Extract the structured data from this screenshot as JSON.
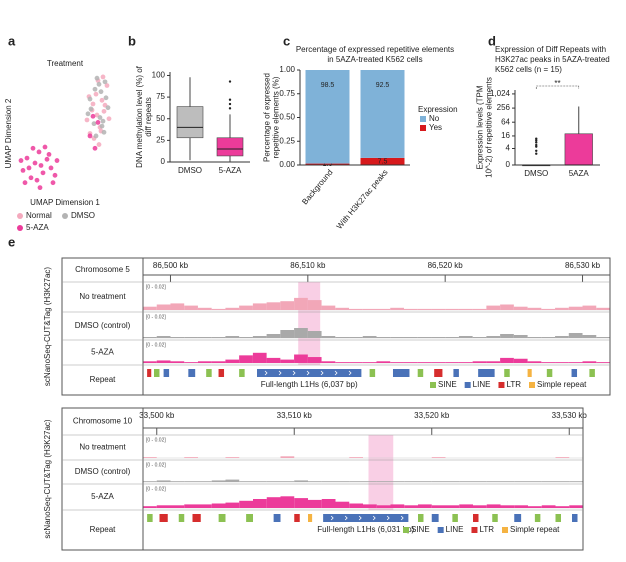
{
  "chart_data": [
    {
      "type": "scatter",
      "panel": "a",
      "title": "Treatment",
      "xlabel": "UMAP Dimension 1",
      "ylabel": "UMAP Dimension 2",
      "xlim": [
        0,
        10
      ],
      "ylim": [
        0,
        10
      ],
      "series": [
        {
          "name": "Normal",
          "color": "#f4a9bd",
          "x": [
            7.2,
            7.8,
            8.1,
            8.5,
            8.9,
            9.2,
            7.5,
            8.3,
            8.7,
            9.4,
            7.9,
            8.2,
            8.6,
            7.4,
            9.0,
            8.4,
            7.7,
            8.8
          ],
          "values": [
            6.1,
            7.4,
            8.2,
            5.5,
            6.8,
            8.9,
            5.0,
            9.3,
            7.7,
            6.2,
            4.6,
            6.5,
            5.2,
            8.0,
            7.3,
            4.1,
            6.9,
            9.6
          ]
        },
        {
          "name": "DMSO",
          "color": "#b3b3b3",
          "x": [
            7.6,
            8.0,
            8.4,
            8.8,
            9.1,
            7.3,
            8.6,
            9.3,
            7.9,
            8.2,
            8.9,
            7.5,
            8.5,
            9.0,
            8.1,
            8.7
          ],
          "values": [
            7.0,
            8.6,
            9.0,
            6.0,
            7.9,
            6.6,
            8.4,
            7.1,
            5.8,
            9.5,
            5.1,
            7.8,
            6.3,
            9.2,
            4.8,
            5.6
          ]
        },
        {
          "name": "5-AZA",
          "color": "#ec3b9a",
          "x": [
            0.8,
            1.2,
            1.6,
            2.0,
            2.4,
            2.8,
            3.2,
            3.6,
            4.0,
            1.0,
            1.8,
            2.6,
            3.4,
            4.2,
            1.4,
            2.2,
            3.0,
            3.8,
            0.6,
            2.5,
            7.8,
            8.3,
            8.0,
            7.5
          ],
          "values": [
            2.0,
            3.0,
            1.4,
            2.6,
            3.5,
            1.8,
            2.9,
            2.2,
            1.6,
            1.0,
            3.8,
            2.4,
            3.3,
            2.8,
            2.2,
            1.2,
            3.9,
            1.0,
            2.8,
            0.6,
            6.4,
            5.9,
            3.8,
            4.8
          ]
        }
      ]
    },
    {
      "type": "box",
      "panel": "b",
      "ylabel": "DNA methylation level (%) of diff repeats",
      "categories": [
        "DMSO",
        "5-AZA"
      ],
      "colors": [
        "#bdbdbd",
        "#ec3b9a"
      ],
      "ylim": [
        0,
        104
      ],
      "yticks": [
        0,
        25,
        50,
        75,
        100
      ],
      "boxes": [
        {
          "min": 2,
          "q1": 28,
          "median": 40,
          "q3": 64,
          "max": 98,
          "outliers": []
        },
        {
          "min": 0,
          "q1": 7,
          "median": 15,
          "q3": 28,
          "max": 55,
          "outliers": [
            62,
            67,
            72,
            93
          ]
        }
      ]
    },
    {
      "type": "stacked-bar",
      "panel": "c",
      "title": "Percentage of expressed repetitive elements in 5AZA-treated K562 cells",
      "ylabel": "Percentage of expressed repetitive elements (%)",
      "legend_title": "Expression",
      "categories": [
        "Background",
        "With H3K27ac peaks"
      ],
      "ylim": [
        0,
        1
      ],
      "yticks": [
        {
          "value": 0,
          "label": "0.00"
        },
        {
          "value": 0.25,
          "label": "0.25"
        },
        {
          "value": 0.5,
          "label": "0.50"
        },
        {
          "value": 0.75,
          "label": "0.75"
        },
        {
          "value": 1,
          "label": "1.00"
        }
      ],
      "series": [
        {
          "name": "No",
          "color": "#7fb2d8",
          "values": [
            0.985,
            0.925
          ],
          "value_labels": [
            "98.5",
            "92.5"
          ]
        },
        {
          "name": "Yes",
          "color": "#d7191c",
          "values": [
            0.015,
            0.075
          ],
          "value_labels": [
            "1.5",
            "7.5"
          ]
        }
      ]
    },
    {
      "type": "box",
      "panel": "d",
      "title": "Expression of Diff Repeats with H3K27ac peaks in 5AZA-treated K562 cells (n = 15)",
      "ylabel": "Expression levels (TPM 10^-2) of repetitive elements",
      "annotation": "**",
      "categories": [
        "DMSO",
        "5AZA"
      ],
      "colors": [
        "#bdbdbd",
        "#ec3b9a"
      ],
      "yscale": "pseudo-log2",
      "ylim": [
        0,
        1500
      ],
      "yticks": [
        0,
        4,
        16,
        64,
        256,
        {
          "value": 1024,
          "label": "1,024"
        }
      ],
      "boxes": [
        {
          "min": 0,
          "q1": 0,
          "median": 0,
          "q3": 0,
          "max": 0,
          "outliers": [
            2,
            3,
            5,
            6,
            8,
            10,
            12
          ]
        },
        {
          "min": 0,
          "q1": 0,
          "median": 0,
          "q3": 20,
          "max": 300,
          "outliers": []
        }
      ]
    },
    {
      "type": "genome-track",
      "panel": "e",
      "ylabel": "scNanoSeq-CUT&Tag (H3K27ac)",
      "chromosome": "Chromosome 5",
      "xlim": [
        86498,
        86532
      ],
      "xticks": [
        {
          "value": 86500,
          "label": "86,500 kb"
        },
        {
          "value": 86510,
          "label": "86,510 kb"
        },
        {
          "value": 86520,
          "label": "86,520 kb"
        },
        {
          "value": 86530,
          "label": "86,530 kb"
        }
      ],
      "highlight": [
        86509.3,
        86510.9
      ],
      "ylim": [
        0,
        0.02
      ],
      "range_label": "[0 - 0.02]",
      "bins": [
        86498,
        86499,
        86500,
        86501,
        86502,
        86503,
        86504,
        86505,
        86506,
        86507,
        86508,
        86509,
        86510,
        86511,
        86512,
        86513,
        86514,
        86515,
        86516,
        86517,
        86518,
        86519,
        86520,
        86521,
        86522,
        86523,
        86524,
        86525,
        86526,
        86527,
        86528,
        86529,
        86530,
        86531,
        86532
      ],
      "tracks": [
        {
          "name": "No treatment",
          "color": "#f2a7b8",
          "values": [
            0.003,
            0.005,
            0.006,
            0.004,
            0.002,
            0.001,
            0.002,
            0.004,
            0.006,
            0.007,
            0.008,
            0.011,
            0.009,
            0.004,
            0.002,
            0.001,
            0.001,
            0.001,
            0.002,
            0.001,
            0.001,
            0.001,
            0.001,
            0.001,
            0.001,
            0.004,
            0.005,
            0.003,
            0.002,
            0.001,
            0.002,
            0.003,
            0.004,
            0.002
          ]
        },
        {
          "name": "DMSO (control)",
          "color": "#a9a9a9",
          "values": [
            0.001,
            0.002,
            0.001,
            0.001,
            0.001,
            0.001,
            0.002,
            0.001,
            0.002,
            0.004,
            0.008,
            0.01,
            0.007,
            0.002,
            0.001,
            0.001,
            0.002,
            0.001,
            0.001,
            0.001,
            0.001,
            0.001,
            0.001,
            0.002,
            0.001,
            0.002,
            0.004,
            0.003,
            0.001,
            0.001,
            0.002,
            0.005,
            0.003,
            0.001
          ]
        },
        {
          "name": "5-AZA",
          "color": "#ec3b9a",
          "values": [
            0.002,
            0.003,
            0.002,
            0.001,
            0.002,
            0.002,
            0.004,
            0.009,
            0.012,
            0.006,
            0.004,
            0.01,
            0.007,
            0.002,
            0.001,
            0.001,
            0.001,
            0.002,
            0.001,
            0.001,
            0.001,
            0.001,
            0.001,
            0.001,
            0.002,
            0.002,
            0.006,
            0.005,
            0.002,
            0.001,
            0.001,
            0.001,
            0.002,
            0.001
          ]
        }
      ],
      "repeat_track": "Repeat",
      "annotation": "Full-length L1Hs (6,037 bp)",
      "repeats": [
        {
          "start": 86498.3,
          "end": 86498.6,
          "class": "LTR"
        },
        {
          "start": 86498.8,
          "end": 86499.2,
          "class": "SINE"
        },
        {
          "start": 86499.5,
          "end": 86499.9,
          "class": "LINE"
        },
        {
          "start": 86501.3,
          "end": 86501.8,
          "class": "LINE"
        },
        {
          "start": 86502.6,
          "end": 86503.0,
          "class": "SINE"
        },
        {
          "start": 86503.5,
          "end": 86503.9,
          "class": "LTR"
        },
        {
          "start": 86505.0,
          "end": 86505.4,
          "class": "SINE"
        },
        {
          "start": 86506.3,
          "end": 86513.9,
          "class": "LINE"
        },
        {
          "start": 86514.5,
          "end": 86514.9,
          "class": "SINE"
        },
        {
          "start": 86516.2,
          "end": 86517.4,
          "class": "LINE"
        },
        {
          "start": 86518.0,
          "end": 86518.4,
          "class": "SINE"
        },
        {
          "start": 86519.2,
          "end": 86519.8,
          "class": "LTR"
        },
        {
          "start": 86520.6,
          "end": 86521.0,
          "class": "LINE"
        },
        {
          "start": 86522.4,
          "end": 86523.6,
          "class": "LINE"
        },
        {
          "start": 86524.3,
          "end": 86524.7,
          "class": "SINE"
        },
        {
          "start": 86526.0,
          "end": 86526.3,
          "class": "Simple repeat"
        },
        {
          "start": 86527.4,
          "end": 86527.8,
          "class": "SINE"
        },
        {
          "start": 86529.2,
          "end": 86529.6,
          "class": "LINE"
        },
        {
          "start": 86530.5,
          "end": 86530.9,
          "class": "SINE"
        }
      ],
      "legend": [
        {
          "name": "SINE",
          "color": "#8cc152"
        },
        {
          "name": "LINE",
          "color": "#4a72b8"
        },
        {
          "name": "LTR",
          "color": "#d62d2d"
        },
        {
          "name": "Simple repeat",
          "color": "#f5b342"
        }
      ]
    },
    {
      "type": "genome-track",
      "ylabel": "scNanoSeq-CUT&Tag (H3K27ac)",
      "chromosome": "Chromosome 10",
      "xlim": [
        33499,
        33531
      ],
      "xticks": [
        {
          "value": 33500,
          "label": "33,500 kb"
        },
        {
          "value": 33510,
          "label": "33,510 kb"
        },
        {
          "value": 33520,
          "label": "33,520 kb"
        },
        {
          "value": 33530,
          "label": "33,530 kb"
        }
      ],
      "highlight": [
        33515.4,
        33517.2
      ],
      "ylim": [
        0,
        0.02
      ],
      "range_label": "[0 - 0.02]",
      "bins": [
        33499,
        33500,
        33501,
        33502,
        33503,
        33504,
        33505,
        33506,
        33507,
        33508,
        33509,
        33510,
        33511,
        33512,
        33513,
        33514,
        33515,
        33516,
        33517,
        33518,
        33519,
        33520,
        33521,
        33522,
        33523,
        33524,
        33525,
        33526,
        33527,
        33528,
        33529,
        33530,
        33531
      ],
      "tracks": [
        {
          "name": "No treatment",
          "color": "#f2a7b8",
          "values": [
            0.001,
            0,
            0,
            0.001,
            0,
            0,
            0.001,
            0,
            0,
            0,
            0.002,
            0,
            0,
            0,
            0,
            0.001,
            0,
            0,
            0,
            0,
            0,
            0.001,
            0,
            0,
            0,
            0,
            0,
            0,
            0,
            0,
            0.001,
            0
          ]
        },
        {
          "name": "DMSO (control)",
          "color": "#a9a9a9",
          "values": [
            0.001,
            0.002,
            0.001,
            0.001,
            0.001,
            0.002,
            0.003,
            0.001,
            0.001,
            0.001,
            0.001,
            0.002,
            0.001,
            0.001,
            0.001,
            0.001,
            0.001,
            0.001,
            0.001,
            0.001,
            0.001,
            0.001,
            0.001,
            0.001,
            0.001,
            0.001,
            0.001,
            0.001,
            0.001,
            0.001,
            0.001,
            0.001
          ]
        },
        {
          "name": "5-AZA",
          "color": "#ec3b9a",
          "values": [
            0.002,
            0.003,
            0.003,
            0.004,
            0.004,
            0.005,
            0.006,
            0.008,
            0.01,
            0.012,
            0.013,
            0.011,
            0.009,
            0.01,
            0.007,
            0.005,
            0.004,
            0.003,
            0.004,
            0.003,
            0.004,
            0.003,
            0.003,
            0.004,
            0.003,
            0.004,
            0.003,
            0.003,
            0.002,
            0.003,
            0.002,
            0.003
          ]
        }
      ],
      "repeat_track": "Repeat",
      "annotation": "Full-length L1Hs (6,031 bp)",
      "repeats": [
        {
          "start": 33499.3,
          "end": 33499.7,
          "class": "SINE"
        },
        {
          "start": 33500.2,
          "end": 33500.8,
          "class": "LTR"
        },
        {
          "start": 33501.6,
          "end": 33502.0,
          "class": "SINE"
        },
        {
          "start": 33502.6,
          "end": 33503.2,
          "class": "LTR"
        },
        {
          "start": 33504.5,
          "end": 33505.0,
          "class": "SINE"
        },
        {
          "start": 33506.5,
          "end": 33507.0,
          "class": "SINE"
        },
        {
          "start": 33508.5,
          "end": 33509.0,
          "class": "LINE"
        },
        {
          "start": 33510.0,
          "end": 33510.4,
          "class": "LTR"
        },
        {
          "start": 33511.0,
          "end": 33511.3,
          "class": "Simple repeat"
        },
        {
          "start": 33512.1,
          "end": 33518.3,
          "class": "LINE"
        },
        {
          "start": 33519.0,
          "end": 33519.4,
          "class": "SINE"
        },
        {
          "start": 33520.0,
          "end": 33520.5,
          "class": "LINE"
        },
        {
          "start": 33521.5,
          "end": 33521.9,
          "class": "SINE"
        },
        {
          "start": 33523.0,
          "end": 33523.4,
          "class": "LTR"
        },
        {
          "start": 33524.4,
          "end": 33524.8,
          "class": "SINE"
        },
        {
          "start": 33526.0,
          "end": 33526.5,
          "class": "LINE"
        },
        {
          "start": 33527.5,
          "end": 33527.9,
          "class": "SINE"
        },
        {
          "start": 33529.0,
          "end": 33529.4,
          "class": "SINE"
        },
        {
          "start": 33530.2,
          "end": 33530.6,
          "class": "LINE"
        }
      ],
      "legend": [
        {
          "name": "SINE",
          "color": "#8cc152"
        },
        {
          "name": "LINE",
          "color": "#4a72b8"
        },
        {
          "name": "LTR",
          "color": "#d62d2d"
        },
        {
          "name": "Simple repeat",
          "color": "#f5b342"
        }
      ]
    }
  ]
}
